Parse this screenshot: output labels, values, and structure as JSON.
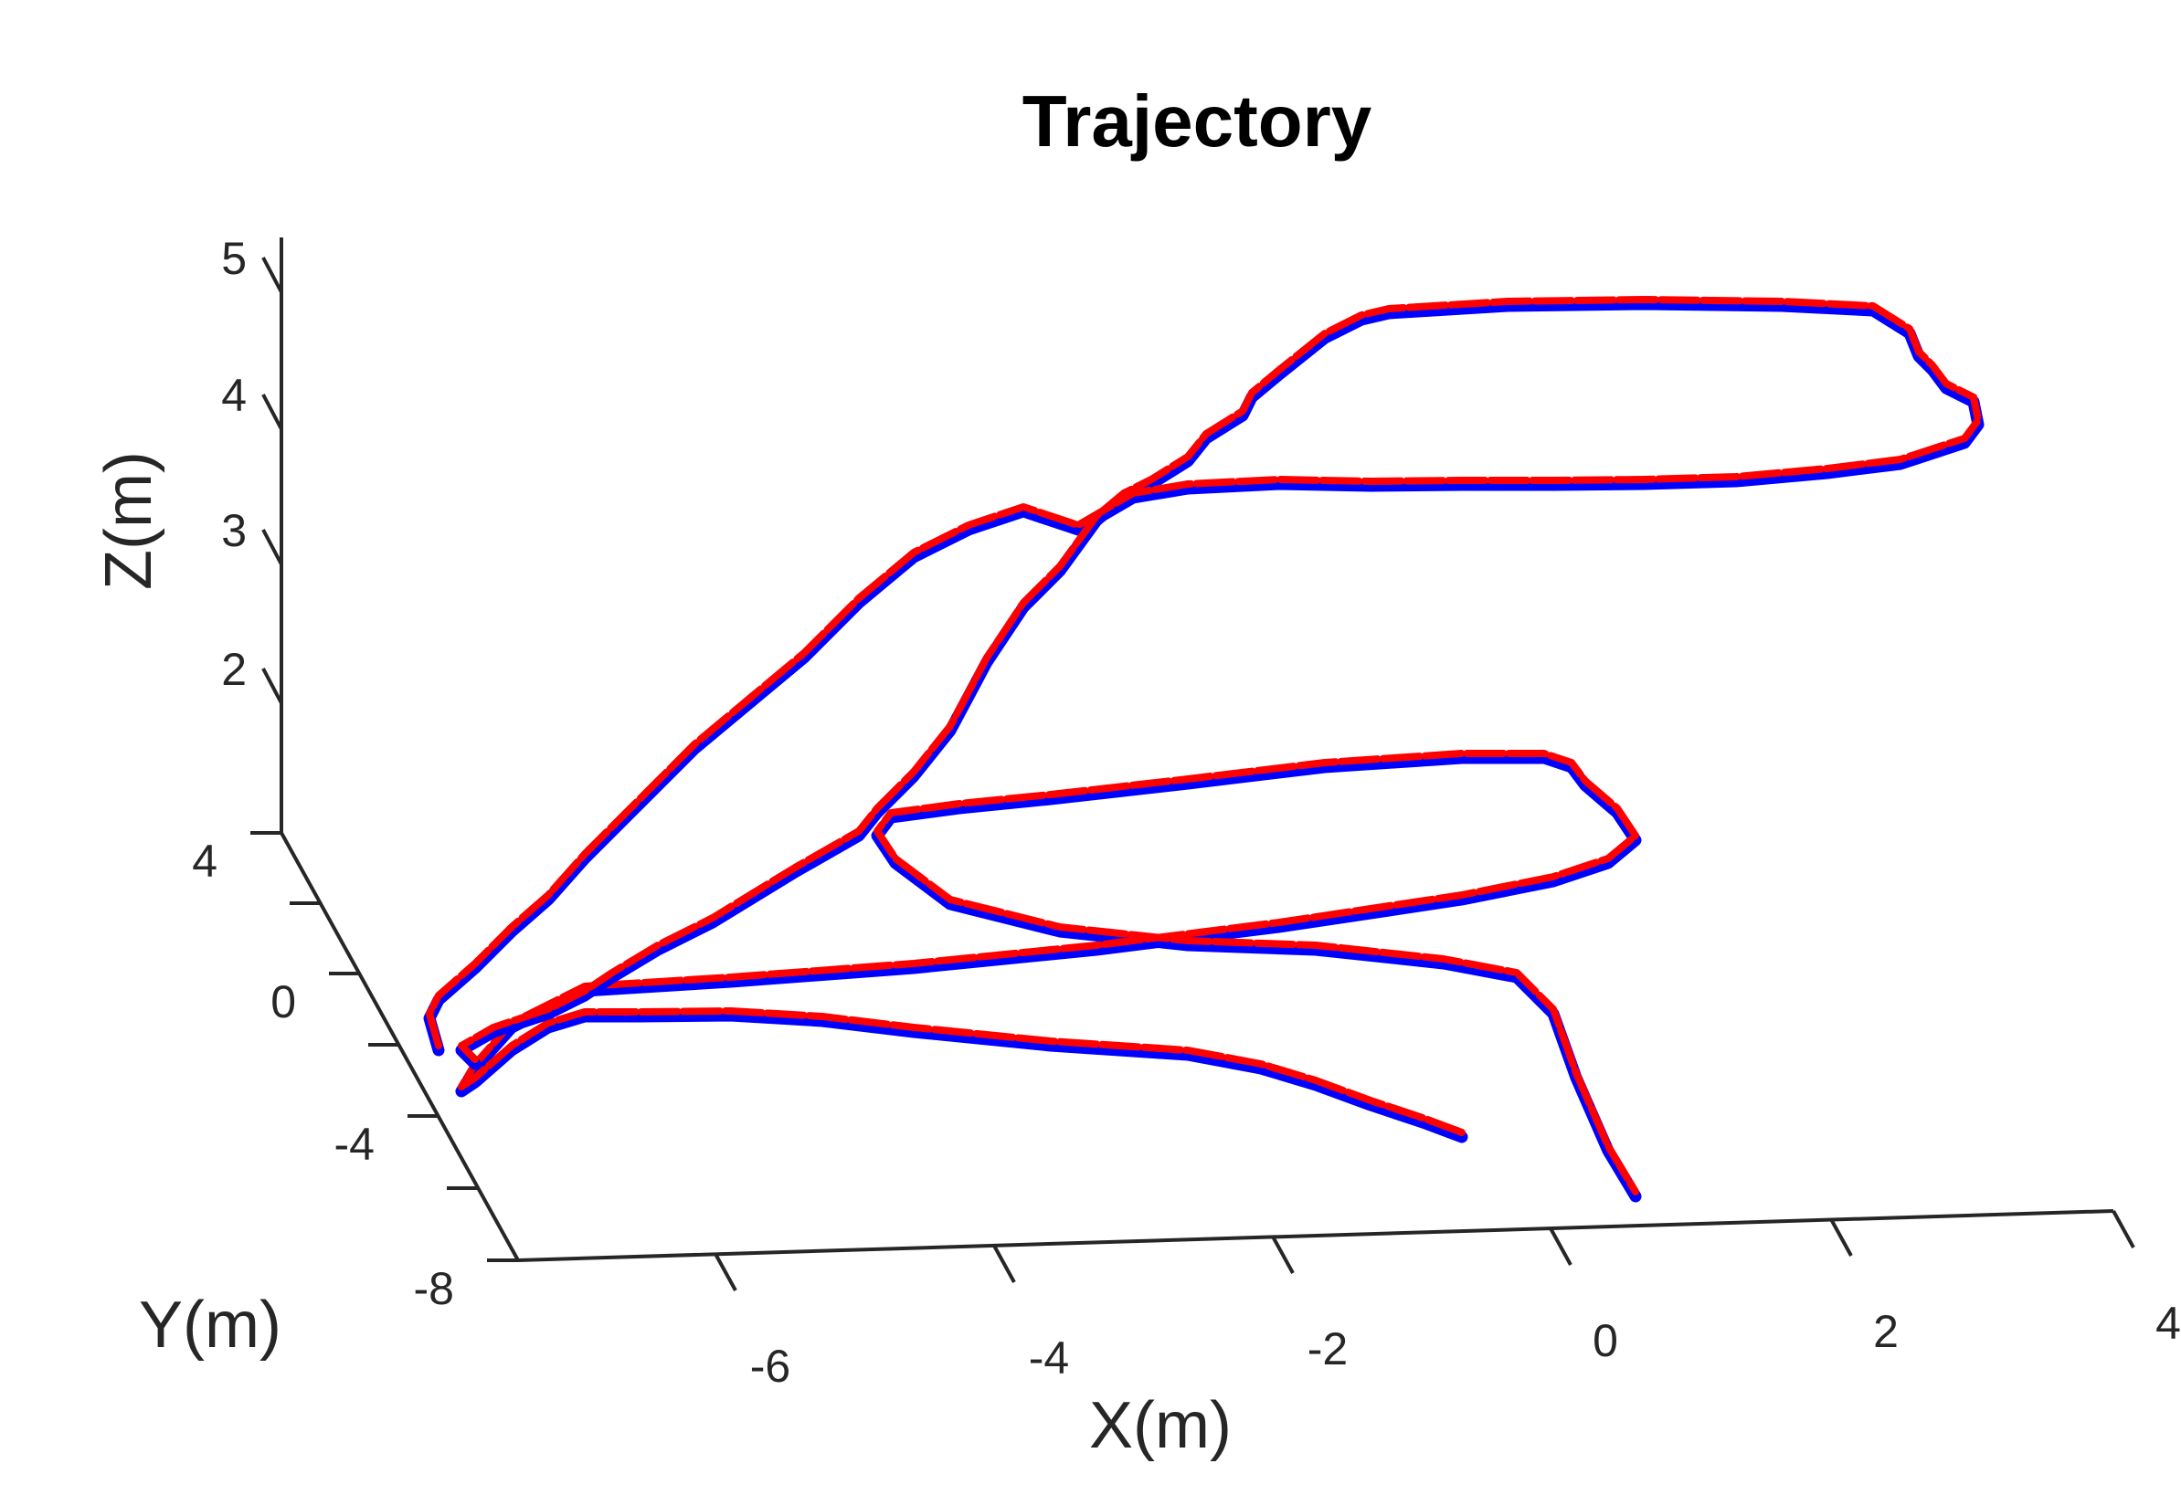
{
  "chart_data": {
    "type": "line",
    "title": "Trajectory",
    "xlabel": "X(m)",
    "ylabel": "Y(m)",
    "zlabel": "Z(m)",
    "xticks": [
      "-6",
      "-4",
      "-2",
      "0",
      "2",
      "4"
    ],
    "yticks": [
      "4",
      "0",
      "-4",
      "-8"
    ],
    "zticks": [
      "5",
      "4",
      "3",
      "2"
    ],
    "xlim": [
      -7.5,
      4
    ],
    "ylim": [
      -8,
      4
    ],
    "zlim": [
      1,
      5
    ],
    "colors": {
      "series_a": "#0000ff",
      "series_b": "#ff0000"
    },
    "path_xy": [
      [
        -0.9,
        -8.2
      ],
      [
        -1.5,
        -7.6
      ],
      [
        -2.2,
        -7.0
      ],
      [
        -3.0,
        -6.5
      ],
      [
        -3.8,
        -6.2
      ],
      [
        -5.0,
        -5.6
      ],
      [
        -6.3,
        -4.9
      ],
      [
        -7.2,
        -4.8
      ],
      [
        -7.4,
        -5.6
      ],
      [
        -7.1,
        -5.0
      ],
      [
        -6.2,
        -3.2
      ],
      [
        -4.0,
        -1.8
      ],
      [
        -2.5,
        -1.3
      ],
      [
        -1.0,
        -1.0
      ],
      [
        0.8,
        0.0
      ],
      [
        1.0,
        1.4
      ],
      [
        0.3,
        1.8
      ],
      [
        -1.0,
        2.3
      ],
      [
        -2.0,
        2.6
      ],
      [
        -3.2,
        2.4
      ],
      [
        -3.2,
        1.8
      ],
      [
        -2.9,
        1.2
      ],
      [
        -1.7,
        0.6
      ],
      [
        -0.4,
        0.0
      ],
      [
        0.3,
        -2.5
      ],
      [
        0.5,
        -6.0
      ]
    ],
    "path_xz": [
      [
        -7.4,
        1.6
      ],
      [
        -6.8,
        2.3
      ],
      [
        -6.0,
        3.1
      ],
      [
        -5.0,
        3.7
      ],
      [
        -4.2,
        4.1
      ],
      [
        -3.5,
        4.25
      ],
      [
        -2.5,
        4.28
      ],
      [
        -1.0,
        4.27
      ],
      [
        0.5,
        4.28
      ],
      [
        2.0,
        4.3
      ],
      [
        3.0,
        4.4
      ],
      [
        3.1,
        4.7
      ],
      [
        2.8,
        4.95
      ],
      [
        2.0,
        5.15
      ],
      [
        0.5,
        5.15
      ],
      [
        -1.0,
        5.05
      ],
      [
        -1.9,
        4.8
      ],
      [
        -2.3,
        4.55
      ],
      [
        -2.9,
        4.2
      ],
      [
        -3.4,
        3.8
      ],
      [
        -4.2,
        3.0
      ],
      [
        -5.0,
        2.5
      ],
      [
        -6.0,
        2.0
      ],
      [
        -7.0,
        1.6
      ],
      [
        -7.3,
        1.5
      ]
    ]
  }
}
